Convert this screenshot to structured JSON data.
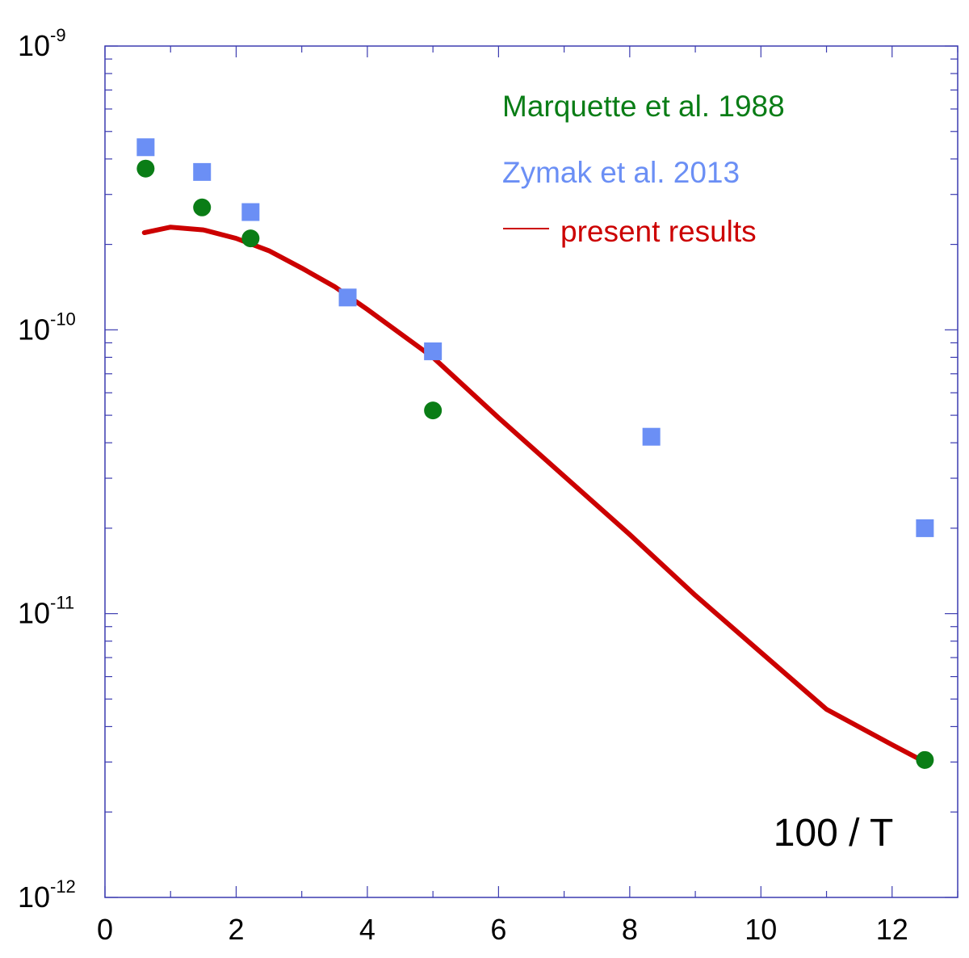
{
  "chart_data": {
    "type": "scatter",
    "title": "",
    "xlabel": "100 / T",
    "ylabel": "",
    "xlim": [
      0,
      13
    ],
    "ylim_log10": [
      -12,
      -9
    ],
    "y_scale": "log",
    "grid": false,
    "legend_position": "top-right",
    "x_ticks": [
      {
        "value": 0,
        "label": "0"
      },
      {
        "value": 2,
        "label": "2"
      },
      {
        "value": 4,
        "label": "4"
      },
      {
        "value": 6,
        "label": "6"
      },
      {
        "value": 8,
        "label": "8"
      },
      {
        "value": 10,
        "label": "10"
      },
      {
        "value": 12,
        "label": "12"
      }
    ],
    "y_ticks": [
      {
        "exp": -12,
        "base": "10",
        "exponent": "-12"
      },
      {
        "exp": -11,
        "base": "10",
        "exponent": "-11"
      },
      {
        "exp": -10,
        "base": "10",
        "exponent": "-10"
      },
      {
        "exp": -9,
        "base": "10",
        "exponent": "-9"
      }
    ],
    "series": [
      {
        "name": "Marquette et al. 1988",
        "kind": "scatter",
        "marker": "circle",
        "color": "#0a7d16",
        "x": [
          0.62,
          1.48,
          2.22,
          5.0,
          12.5
        ],
        "y": [
          3.7e-10,
          2.7e-10,
          2.1e-10,
          5.2e-11,
          3.05e-12
        ]
      },
      {
        "name": "Zymak et al. 2013",
        "kind": "scatter",
        "marker": "square",
        "color": "#6b8ff5",
        "x": [
          0.62,
          1.48,
          2.22,
          3.7,
          5.0,
          8.33,
          12.5
        ],
        "y": [
          4.4e-10,
          3.6e-10,
          2.6e-10,
          1.3e-10,
          8.4e-11,
          4.2e-11,
          2e-11
        ]
      },
      {
        "name": "present results",
        "kind": "line",
        "color": "#cc0000",
        "x": [
          0.6,
          1.0,
          1.5,
          2.0,
          2.5,
          3.0,
          3.5,
          4.0,
          5.0,
          6.0,
          7.0,
          8.0,
          9.0,
          10.0,
          11.0,
          12.0,
          12.5
        ],
        "y": [
          2.2e-10,
          2.3e-10,
          2.25e-10,
          2.1e-10,
          1.9e-10,
          1.65e-10,
          1.42e-10,
          1.18e-10,
          8e-11,
          4.9e-11,
          3.05e-11,
          1.9e-11,
          1.16e-11,
          7.3e-12,
          4.6e-12,
          3.45e-12,
          3e-12
        ]
      }
    ],
    "legend": [
      {
        "label": "Marquette et al. 1988",
        "color": "#0a7d16"
      },
      {
        "label": "Zymak et al. 2013",
        "color": "#6b8ff5"
      },
      {
        "label": "present results",
        "color": "#cc0000"
      }
    ]
  }
}
